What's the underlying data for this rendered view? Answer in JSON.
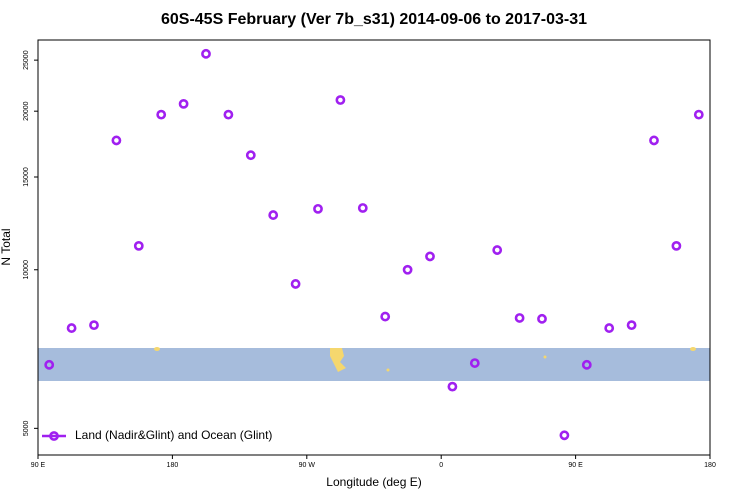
{
  "chart_data": {
    "type": "scatter",
    "title": "60S-45S February (Ver 7b_s31)   2014-09-06 to 2017-03-31",
    "x_label": "Longitude (deg E)",
    "y_label": "N Total",
    "log_y": true,
    "legend": "bottom-left",
    "xlim": [
      90,
      540
    ],
    "xticks": [
      {
        "value": 90,
        "label": "90 E"
      },
      180,
      {
        "value": 270,
        "label": "90 W"
      },
      {
        "value": 360,
        "label": "0"
      },
      {
        "value": 450,
        "label": "90 E"
      },
      {
        "value": 540,
        "label": "180"
      }
    ],
    "ylim": [
      4450,
      27300
    ],
    "yticks": [
      5000,
      10000,
      15000,
      20000,
      25000
    ],
    "series": [
      {
        "name": "Land (Nadir&Glint) and Ocean (Glint)",
        "color": "#a020f0",
        "x": [
          97.5,
          112.5,
          127.5,
          142.5,
          157.5,
          172.5,
          187.5,
          202.5,
          217.5,
          232.5,
          247.5,
          262.5,
          277.5,
          292.5,
          307.5,
          322.5,
          337.5,
          352.5,
          367.5,
          382.5,
          397.5,
          412.5,
          427.5,
          442.5,
          457.5,
          472.5,
          487.5,
          502.5,
          517.5,
          532.5
        ],
        "values": [
          6600,
          7750,
          7850,
          17600,
          11100,
          19700,
          20650,
          25700,
          19700,
          16500,
          12700,
          9400,
          13050,
          21000,
          13100,
          8150,
          10000,
          10600,
          6000,
          6650,
          10900,
          8100,
          8070,
          4850,
          6600,
          7750,
          7850,
          17600,
          11100,
          19700
        ]
      }
    ]
  }
}
